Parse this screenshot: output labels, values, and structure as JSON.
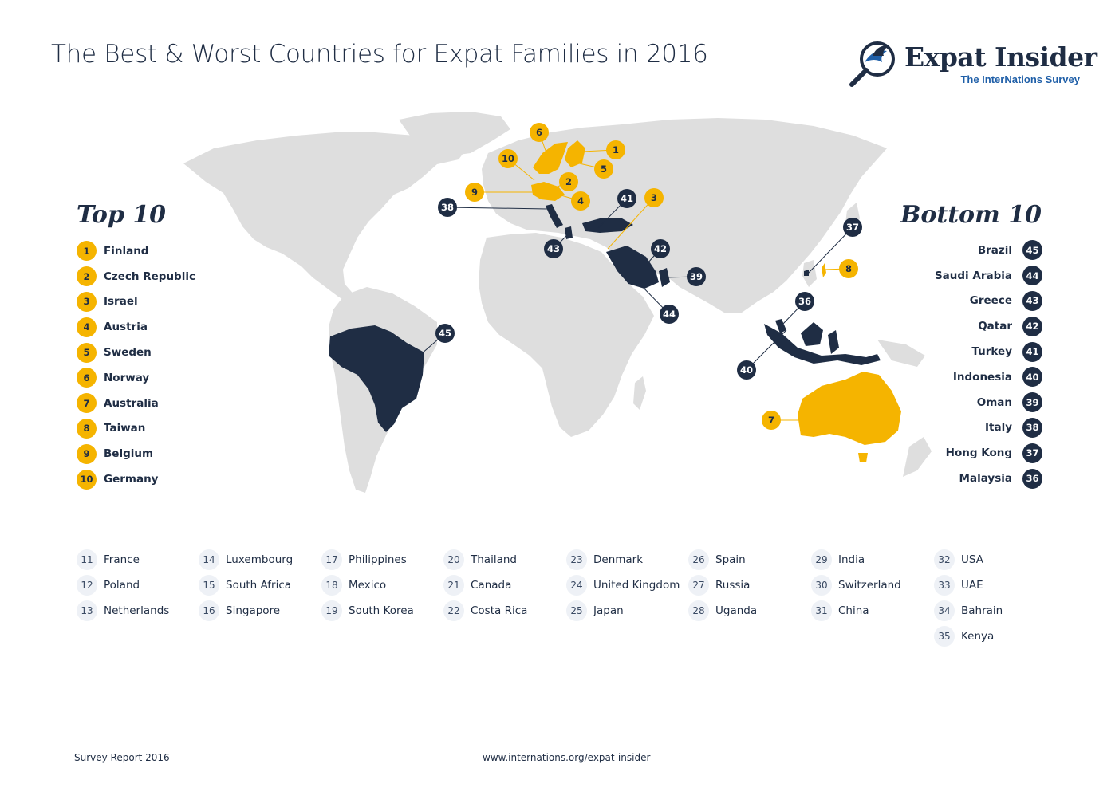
{
  "title": "The Best & Worst Countries for Expat Families in 2016",
  "logo": {
    "name": "Expat Insider",
    "tagline": "The InterNations Survey",
    "icon": "magnifier-bird-icon"
  },
  "colors": {
    "top": "#f5b400",
    "bottom": "#1f2d44",
    "land": "#dedede",
    "brand_blue": "#1f5fa8"
  },
  "top10": {
    "heading": "Top 10",
    "items": [
      {
        "rank": "1",
        "name": "Finland"
      },
      {
        "rank": "2",
        "name": "Czech Republic"
      },
      {
        "rank": "3",
        "name": "Israel"
      },
      {
        "rank": "4",
        "name": "Austria"
      },
      {
        "rank": "5",
        "name": "Sweden"
      },
      {
        "rank": "6",
        "name": "Norway"
      },
      {
        "rank": "7",
        "name": "Australia"
      },
      {
        "rank": "8",
        "name": "Taiwan"
      },
      {
        "rank": "9",
        "name": "Belgium"
      },
      {
        "rank": "10",
        "name": "Germany"
      }
    ]
  },
  "bottom10": {
    "heading": "Bottom 10",
    "items": [
      {
        "rank": "45",
        "name": "Brazil"
      },
      {
        "rank": "44",
        "name": "Saudi Arabia"
      },
      {
        "rank": "43",
        "name": "Greece"
      },
      {
        "rank": "42",
        "name": "Qatar"
      },
      {
        "rank": "41",
        "name": "Turkey"
      },
      {
        "rank": "40",
        "name": "Indonesia"
      },
      {
        "rank": "39",
        "name": "Oman"
      },
      {
        "rank": "38",
        "name": "Italy"
      },
      {
        "rank": "37",
        "name": "Hong Kong"
      },
      {
        "rank": "36",
        "name": "Malaysia"
      }
    ]
  },
  "ranking": [
    [
      {
        "rank": "11",
        "name": "France"
      },
      {
        "rank": "12",
        "name": "Poland"
      },
      {
        "rank": "13",
        "name": "Netherlands"
      }
    ],
    [
      {
        "rank": "14",
        "name": "Luxembourg"
      },
      {
        "rank": "15",
        "name": "South Africa"
      },
      {
        "rank": "16",
        "name": "Singapore"
      }
    ],
    [
      {
        "rank": "17",
        "name": "Philippines"
      },
      {
        "rank": "18",
        "name": "Mexico"
      },
      {
        "rank": "19",
        "name": "South Korea"
      }
    ],
    [
      {
        "rank": "20",
        "name": "Thailand"
      },
      {
        "rank": "21",
        "name": "Canada"
      },
      {
        "rank": "22",
        "name": "Costa Rica"
      }
    ],
    [
      {
        "rank": "23",
        "name": "Denmark"
      },
      {
        "rank": "24",
        "name": "United Kingdom"
      },
      {
        "rank": "25",
        "name": "Japan"
      }
    ],
    [
      {
        "rank": "26",
        "name": "Spain"
      },
      {
        "rank": "27",
        "name": "Russia"
      },
      {
        "rank": "28",
        "name": "Uganda"
      }
    ],
    [
      {
        "rank": "29",
        "name": "India"
      },
      {
        "rank": "30",
        "name": "Switzerland"
      },
      {
        "rank": "31",
        "name": "China"
      }
    ],
    [
      {
        "rank": "32",
        "name": "USA"
      },
      {
        "rank": "33",
        "name": "UAE"
      },
      {
        "rank": "34",
        "name": "Bahrain"
      },
      {
        "rank": "35",
        "name": "Kenya"
      }
    ]
  ],
  "map_markers": {
    "top": [
      "1",
      "2",
      "3",
      "4",
      "5",
      "6",
      "7",
      "8",
      "9",
      "10"
    ],
    "bottom": [
      "36",
      "37",
      "38",
      "39",
      "40",
      "41",
      "42",
      "43",
      "44",
      "45"
    ]
  },
  "footer": {
    "left": "Survey Report 2016",
    "center": "www.internations.org/expat-insider"
  }
}
